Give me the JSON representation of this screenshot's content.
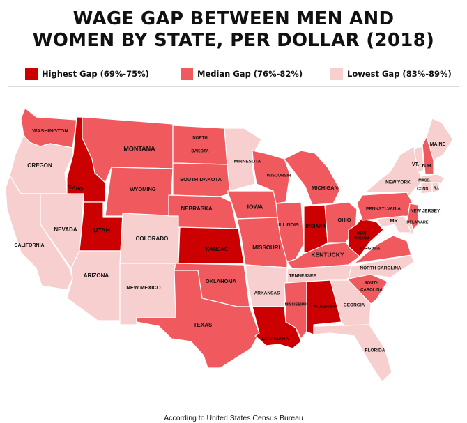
{
  "title": {
    "line1": "WAGE GAP BETWEEN MEN AND",
    "line2": "WOMEN BY STATE, PER DOLLAR (2018)"
  },
  "legend": [
    {
      "label": "Highest Gap (69%-75%)",
      "color": "#cc0000"
    },
    {
      "label": "Median Gap (76%-82%)",
      "color": "#f05a5e"
    },
    {
      "label": "Lowest Gap (83%-89%)",
      "color": "#f7cfcf"
    }
  ],
  "colors": {
    "high": "#cc0000",
    "median": "#f05a5e",
    "low": "#f7cfcf",
    "border": "#ffffff"
  },
  "states": [
    {
      "name": "WASHINGTON",
      "gap": "median"
    },
    {
      "name": "OREGON",
      "gap": "low"
    },
    {
      "name": "CALIFORNIA",
      "gap": "low"
    },
    {
      "name": "IDAHO",
      "gap": "high"
    },
    {
      "name": "NEVADA",
      "gap": "low"
    },
    {
      "name": "UTAH",
      "gap": "high"
    },
    {
      "name": "ARIZONA",
      "gap": "low"
    },
    {
      "name": "MONTANA",
      "gap": "median"
    },
    {
      "name": "WYOMING",
      "gap": "median"
    },
    {
      "name": "COLORADO",
      "gap": "low"
    },
    {
      "name": "NEW MEXICO",
      "gap": "low"
    },
    {
      "name": "NORTH DAKOTA",
      "gap": "median"
    },
    {
      "name": "SOUTH DAKOTA",
      "gap": "median"
    },
    {
      "name": "NEBRASKA",
      "gap": "median"
    },
    {
      "name": "KANSAS",
      "gap": "high"
    },
    {
      "name": "OKLAHOMA",
      "gap": "median"
    },
    {
      "name": "TEXAS",
      "gap": "median"
    },
    {
      "name": "MINNESOTA",
      "gap": "low"
    },
    {
      "name": "IOWA",
      "gap": "median"
    },
    {
      "name": "MISSOURI",
      "gap": "median"
    },
    {
      "name": "ARKANSAS",
      "gap": "low"
    },
    {
      "name": "LOUISIANA",
      "gap": "high"
    },
    {
      "name": "WISCONSIN",
      "gap": "median"
    },
    {
      "name": "ILLINOIS",
      "gap": "median"
    },
    {
      "name": "MICHIGAN",
      "gap": "median"
    },
    {
      "name": "INDIANA",
      "gap": "high"
    },
    {
      "name": "OHIO",
      "gap": "median"
    },
    {
      "name": "KENTUCKY",
      "gap": "median"
    },
    {
      "name": "TENNESSEE",
      "gap": "low"
    },
    {
      "name": "MISSISSIPPI",
      "gap": "median"
    },
    {
      "name": "ALABAMA",
      "gap": "high"
    },
    {
      "name": "GEORGIA",
      "gap": "low"
    },
    {
      "name": "FLORIDA",
      "gap": "low"
    },
    {
      "name": "SOUTH CAROLINA",
      "gap": "median"
    },
    {
      "name": "NORTH CAROLINA",
      "gap": "low"
    },
    {
      "name": "VIRGINIA",
      "gap": "median"
    },
    {
      "name": "WEST VIRGINIA",
      "gap": "high"
    },
    {
      "name": "PENNSYLVANIA",
      "gap": "median"
    },
    {
      "name": "NEW YORK",
      "gap": "low"
    },
    {
      "name": "NEW JERSEY",
      "gap": "median"
    },
    {
      "name": "DELAWARE",
      "gap": "low"
    },
    {
      "name": "MARYLAND",
      "gap": "low"
    },
    {
      "name": "VERMONT",
      "gap": "low"
    },
    {
      "name": "NEW HAMPSHIRE",
      "gap": "median"
    },
    {
      "name": "MAINE",
      "gap": "low"
    },
    {
      "name": "MASSACHUSETTS",
      "gap": "low"
    },
    {
      "name": "CONNECTICUT",
      "gap": "low"
    },
    {
      "name": "RHODE ISLAND",
      "gap": "low"
    }
  ],
  "labels": [
    {
      "state": "WASHINGTON",
      "text": "WASHINGTON"
    },
    {
      "state": "OREGON",
      "text": "OREGON"
    },
    {
      "state": "CALIFORNIA",
      "text": "CALIFORNIA"
    },
    {
      "state": "IDAHO",
      "text": "IDAHO"
    },
    {
      "state": "NEVADA",
      "text": "NEVADA"
    },
    {
      "state": "UTAH",
      "text": "UTAH"
    },
    {
      "state": "ARIZONA",
      "text": "ARIZONA"
    },
    {
      "state": "MONTANA",
      "text": "MONTANA"
    },
    {
      "state": "WYOMING",
      "text": "WYOMING"
    },
    {
      "state": "COLORADO",
      "text": "COLORADO"
    },
    {
      "state": "NEW MEXICO",
      "text": "NEW MEXICO"
    },
    {
      "state": "NORTH DAKOTA",
      "text": "NORTH"
    },
    {
      "state": "NORTH DAKOTA",
      "text": "DAKOTA"
    },
    {
      "state": "SOUTH DAKOTA",
      "text": "SOUTH DAKOTA"
    },
    {
      "state": "NEBRASKA",
      "text": "NEBRASKA"
    },
    {
      "state": "KANSAS",
      "text": "KANSAS"
    },
    {
      "state": "OKLAHOMA",
      "text": "OKLAHOMA"
    },
    {
      "state": "TEXAS",
      "text": "TEXAS"
    },
    {
      "state": "MINNESOTA",
      "text": "MINNESOTA"
    },
    {
      "state": "IOWA",
      "text": "IOWA"
    },
    {
      "state": "MISSOURI",
      "text": "MISSOURI"
    },
    {
      "state": "ARKANSAS",
      "text": "ARKANSAS"
    },
    {
      "state": "LOUISIANA",
      "text": "LOUISIANA"
    },
    {
      "state": "WISCONSIN",
      "text": "WISCONSIN"
    },
    {
      "state": "ILLINOIS",
      "text": "ILLINOIS"
    },
    {
      "state": "MICHIGAN",
      "text": "MICHIGAN"
    },
    {
      "state": "INDIANA",
      "text": "INDIANA"
    },
    {
      "state": "OHIO",
      "text": "OHIO"
    },
    {
      "state": "KENTUCKY",
      "text": "KENTUCKY"
    },
    {
      "state": "TENNESSEE",
      "text": "TENNESSEE"
    },
    {
      "state": "MISSISSIPPI",
      "text": "MISSISSIPPI"
    },
    {
      "state": "ALABAMA",
      "text": "ALABAMA"
    },
    {
      "state": "GEORGIA",
      "text": "GEORGIA"
    },
    {
      "state": "FLORIDA",
      "text": "FLORIDA"
    },
    {
      "state": "SOUTH CAROLINA",
      "text": "SOUTH"
    },
    {
      "state": "SOUTH CAROLINA",
      "text": "CAROLINA"
    },
    {
      "state": "NORTH CAROLINA",
      "text": "NORTH CAROLINA"
    },
    {
      "state": "VIRGINIA",
      "text": "VIRGINIA"
    },
    {
      "state": "WEST VIRGINIA",
      "text": "WEST"
    },
    {
      "state": "WEST VIRGINIA",
      "text": "VIRGINIA"
    },
    {
      "state": "PENNSYLVANIA",
      "text": "PENNSYLVANIA"
    },
    {
      "state": "NEW YORK",
      "text": "NEW YORK"
    },
    {
      "state": "NEW JERSEY",
      "text": "NEW JERSEY"
    },
    {
      "state": "DELAWARE",
      "text": "DELAWARE"
    },
    {
      "state": "MARYLAND",
      "text": "MY"
    },
    {
      "state": "VERMONT",
      "text": "VT."
    },
    {
      "state": "NEW HAMPSHIRE",
      "text": "N.H"
    },
    {
      "state": "MAINE",
      "text": "MAINE"
    },
    {
      "state": "MASSACHUSETTS",
      "text": "MASS."
    },
    {
      "state": "CONNECTICUT",
      "text": "CONN."
    },
    {
      "state": "RHODE ISLAND",
      "text": "R.I."
    }
  ],
  "source": "According to United States Census Bureau"
}
